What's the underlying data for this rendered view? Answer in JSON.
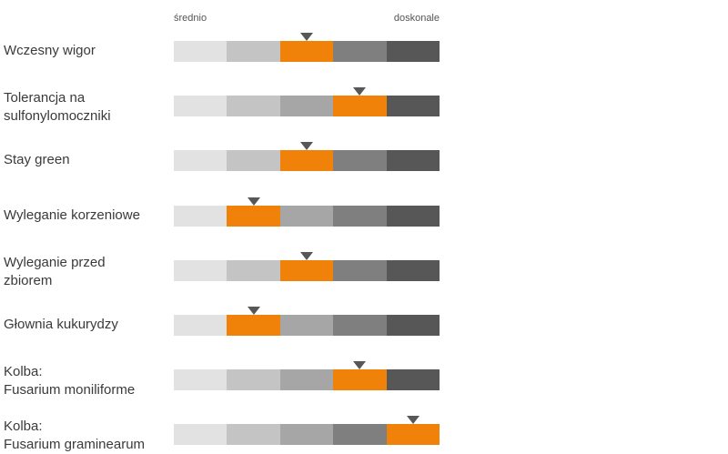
{
  "scale": {
    "min_label": "średnio",
    "max_label": "doskonale"
  },
  "colors": {
    "segments": [
      "#e2e2e2",
      "#c4c4c4",
      "#a6a6a6",
      "#7f7f7f",
      "#575757"
    ],
    "highlight": "#f0820a",
    "marker": "#575757"
  },
  "chart_data": {
    "type": "bar",
    "title": "",
    "scale_levels": 5,
    "scale_min_label": "średnio",
    "scale_max_label": "doskonale",
    "categories": [
      "Wczesny wigor",
      "Tolerancja na sulfonylomoczniki",
      "Stay green",
      "Wyleganie korzeniowe",
      "Wyleganie przed zbiorem",
      "Głownia kukurydzy",
      "Kolba: Fusarium moniliforme",
      "Kolba: Fusarium graminearum"
    ],
    "values": [
      3,
      4,
      3,
      2,
      3,
      2,
      4,
      5
    ],
    "rows": [
      {
        "label_lines": [
          "Wczesny wigor"
        ],
        "value": 3
      },
      {
        "label_lines": [
          "Tolerancja na",
          "sulfonylomoczniki"
        ],
        "value": 4
      },
      {
        "label_lines": [
          "Stay green"
        ],
        "value": 3
      },
      {
        "label_lines": [
          "Wyleganie korzeniowe"
        ],
        "value": 2
      },
      {
        "label_lines": [
          "Wyleganie przed",
          "zbiorem"
        ],
        "value": 3
      },
      {
        "label_lines": [
          "Głownia kukurydzy"
        ],
        "value": 2
      },
      {
        "label_lines": [
          "Kolba:",
          "Fusarium moniliforme"
        ],
        "value": 4
      },
      {
        "label_lines": [
          "Kolba:",
          "Fusarium graminearum"
        ],
        "value": 5
      }
    ]
  }
}
